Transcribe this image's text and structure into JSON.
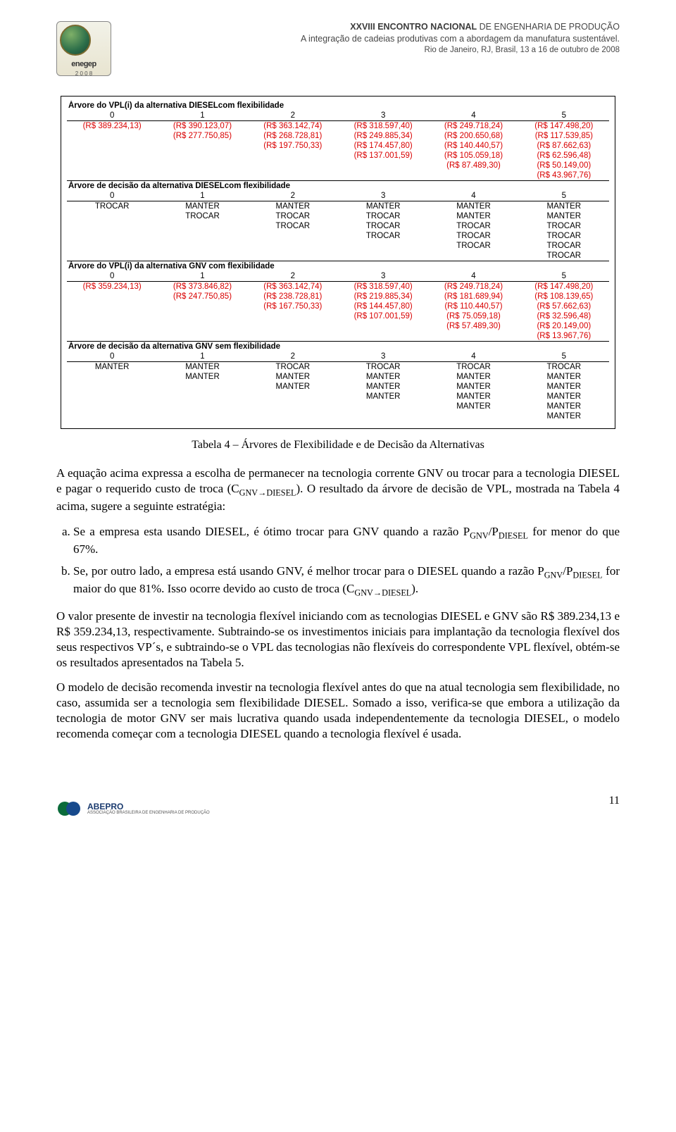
{
  "header": {
    "line1_bold": "XXVIII ENCONTRO NACIONAL",
    "line1_rest": " DE ENGENHARIA DE PRODUÇÃO",
    "line2": "A integração de cadeias produtivas com a abordagem da manufatura sustentável.",
    "line3": "Rio de Janeiro, RJ, Brasil, 13 a 16 de outubro de 2008",
    "logo_text": "enegep",
    "logo_year": "2 0 0 8"
  },
  "table": {
    "sections": [
      {
        "title": "Árvore do VPL(i) da alternativa DIESELcom flexibilidade",
        "headers": [
          "0",
          "1",
          "2",
          "3",
          "4",
          "5"
        ],
        "rows": [
          [
            "(R$ 389.234,13)",
            "(R$ 390.123,07)",
            "(R$ 363.142,74)",
            "(R$ 318.597,40)",
            "(R$ 249.718,24)",
            "(R$ 147.498,20)"
          ],
          [
            "",
            "(R$ 277.750,85)",
            "(R$ 268.728,81)",
            "(R$ 249.885,34)",
            "(R$ 200.650,68)",
            "(R$ 117.539,85)"
          ],
          [
            "",
            "",
            "(R$ 197.750,33)",
            "(R$ 174.457,80)",
            "(R$ 140.440,57)",
            "(R$ 87.662,63)"
          ],
          [
            "",
            "",
            "",
            "(R$ 137.001,59)",
            "(R$ 105.059,18)",
            "(R$ 62.596,48)"
          ],
          [
            "",
            "",
            "",
            "",
            "(R$ 87.489,30)",
            "(R$ 50.149,00)"
          ],
          [
            "",
            "",
            "",
            "",
            "",
            "(R$ 43.967,76)"
          ]
        ],
        "red": true
      },
      {
        "title": "Árvore de decisão da alternativa DIESELcom flexibilidade",
        "headers": [
          "0",
          "1",
          "2",
          "3",
          "4",
          "5"
        ],
        "rows": [
          [
            "TROCAR",
            "MANTER",
            "MANTER",
            "MANTER",
            "MANTER",
            "MANTER"
          ],
          [
            "",
            "TROCAR",
            "TROCAR",
            "TROCAR",
            "MANTER",
            "MANTER"
          ],
          [
            "",
            "",
            "TROCAR",
            "TROCAR",
            "TROCAR",
            "TROCAR"
          ],
          [
            "",
            "",
            "",
            "TROCAR",
            "TROCAR",
            "TROCAR"
          ],
          [
            "",
            "",
            "",
            "",
            "TROCAR",
            "TROCAR"
          ],
          [
            "",
            "",
            "",
            "",
            "",
            "TROCAR"
          ]
        ],
        "red": false
      },
      {
        "title": "Árvore do VPL(i) da alternativa GNV com flexibilidade",
        "headers": [
          "0",
          "1",
          "2",
          "3",
          "4",
          "5"
        ],
        "rows": [
          [
            "(R$ 359.234,13)",
            "(R$ 373.846,82)",
            "(R$ 363.142,74)",
            "(R$ 318.597,40)",
            "(R$ 249.718,24)",
            "(R$ 147.498,20)"
          ],
          [
            "",
            "(R$ 247.750,85)",
            "(R$ 238.728,81)",
            "(R$ 219.885,34)",
            "(R$ 181.689,94)",
            "(R$ 108.139,65)"
          ],
          [
            "",
            "",
            "(R$ 167.750,33)",
            "(R$ 144.457,80)",
            "(R$ 110.440,57)",
            "(R$ 57.662,63)"
          ],
          [
            "",
            "",
            "",
            "(R$ 107.001,59)",
            "(R$ 75.059,18)",
            "(R$ 32.596,48)"
          ],
          [
            "",
            "",
            "",
            "",
            "(R$ 57.489,30)",
            "(R$ 20.149,00)"
          ],
          [
            "",
            "",
            "",
            "",
            "",
            "(R$ 13.967,76)"
          ]
        ],
        "red": true
      },
      {
        "title": "Árvore de decisão da alternativa GNV sem flexibilidade",
        "headers": [
          "0",
          "1",
          "2",
          "3",
          "4",
          "5"
        ],
        "rows": [
          [
            "MANTER",
            "MANTER",
            "TROCAR",
            "TROCAR",
            "TROCAR",
            "TROCAR"
          ],
          [
            "",
            "MANTER",
            "MANTER",
            "MANTER",
            "MANTER",
            "MANTER"
          ],
          [
            "",
            "",
            "MANTER",
            "MANTER",
            "MANTER",
            "MANTER"
          ],
          [
            "",
            "",
            "",
            "MANTER",
            "MANTER",
            "MANTER"
          ],
          [
            "",
            "",
            "",
            "",
            "MANTER",
            "MANTER"
          ],
          [
            "",
            "",
            "",
            "",
            "",
            "MANTER"
          ]
        ],
        "red": false
      }
    ]
  },
  "caption": "Tabela 4 – Árvores de Flexibilidade e de Decisão da Alternativas",
  "body": {
    "p1": "A equação acima expressa a escolha de permanecer na tecnologia corrente GNV ou trocar para a tecnologia DIESEL e pagar o requerido custo de troca (C",
    "p1_sub": "GNV→DIESEL",
    "p1b": "). O resultado da árvore de decisão de VPL, mostrada na Tabela 4 acima, sugere a seguinte estratégia:",
    "li_a": "Se a empresa esta usando DIESEL, é ótimo trocar para GNV quando a razão P",
    "li_a_sub1": "GNV",
    "li_a_mid": "/P",
    "li_a_sub2": "DIESEL",
    "li_a_end": " for menor do que 67%.",
    "li_b": "Se, por outro lado, a empresa está usando GNV, é melhor trocar para o DIESEL quando a razão P",
    "li_b_sub1": "GNV",
    "li_b_mid": "/P",
    "li_b_sub2": "DIESEL",
    "li_b_end": " for maior do que 81%. Isso ocorre devido ao custo de troca (C",
    "li_b_sub3": "GNV→DIESEL",
    "li_b_end2": ").",
    "p2": "O valor presente de investir na tecnologia flexível iniciando com as tecnologias DIESEL e GNV são R$ 389.234,13 e R$ 359.234,13, respectivamente. Subtraindo-se os investimentos iniciais para implantação da tecnologia flexível dos seus respectivos VP´s, e subtraindo-se o VPL das tecnologias não flexíveis do correspondente VPL flexível, obtém-se os resultados apresentados na Tabela 5.",
    "p3": "O modelo de decisão recomenda investir na tecnologia flexível antes do que na atual tecnologia sem flexibilidade, no caso, assumida ser a tecnologia sem flexibilidade DIESEL. Somado a isso, verifica-se que embora a utilização da tecnologia de motor GNV ser mais lucrativa quando usada independentemente da tecnologia DIESEL, o modelo recomenda começar com a tecnologia DIESEL quando a tecnologia flexível é usada."
  },
  "footer": {
    "brand": "ABEPRO",
    "sub": "ASSOCIAÇÃO BRASILEIRA DE ENGENHARIA DE PRODUÇÃO"
  },
  "page_number": "11"
}
